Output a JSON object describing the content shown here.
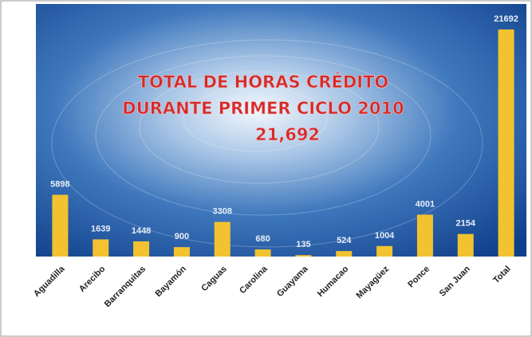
{
  "chart_data": {
    "type": "bar",
    "title_lines": [
      "TOTAL DE HORAS  CRÉDITO",
      "DURANTE PRIMER CICLO 2010",
      "21,692"
    ],
    "categories": [
      "Aguadilla",
      "Arecibo",
      "Barranquitas",
      "Bayamón",
      "Caguas",
      "Carolina",
      "Guayama",
      "Humacao",
      "Mayagüez",
      "Ponce",
      "San Juan",
      "Total"
    ],
    "values": [
      5898,
      1639,
      1448,
      900,
      3308,
      680,
      135,
      524,
      1004,
      4001,
      2154,
      21692
    ],
    "color": "#f2c230"
  }
}
